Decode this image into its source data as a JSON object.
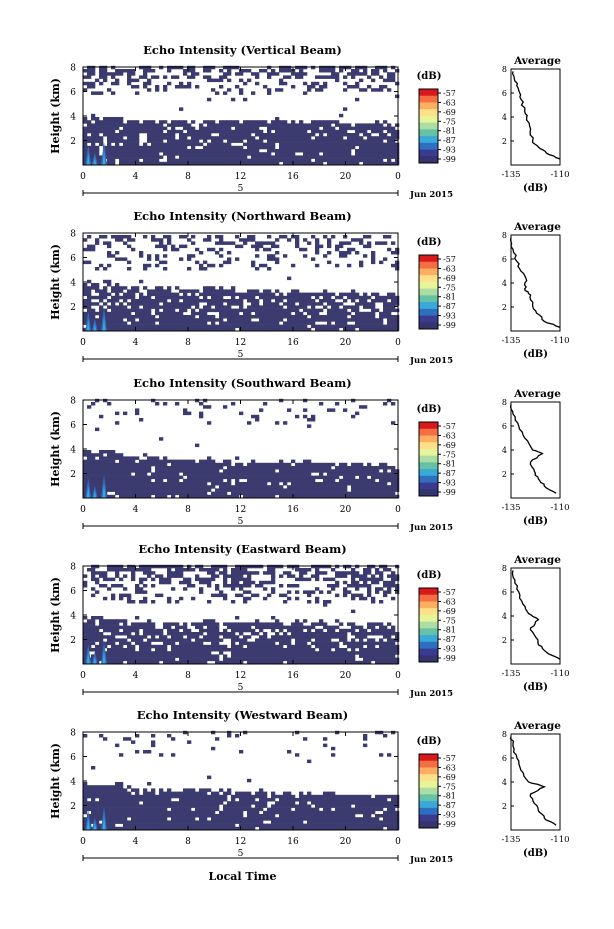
{
  "figure": {
    "xlabel": "Local Time",
    "date_label": "Jun 2015",
    "day_label": "5",
    "colorbar_unit": "(dB)",
    "colorbar_ticks": [
      "-57",
      "-63",
      "-69",
      "-75",
      "-81",
      "-87",
      "-93",
      "-99"
    ],
    "colorbar_colors": [
      "#d7191c",
      "#f46d43",
      "#fdae61",
      "#fee08b",
      "#e6f598",
      "#abdda4",
      "#66c2a5",
      "#3aa8d8",
      "#2f6fc0",
      "#3a3a8f",
      "#36346e"
    ],
    "avg_title": "Average",
    "avg_xlabel": "(dB)",
    "avg_xticks": [
      "-135",
      "-110"
    ],
    "yticks": [
      "2",
      "4",
      "6",
      "8"
    ],
    "xticks": [
      "0",
      "4",
      "8",
      "12",
      "16",
      "20",
      "0"
    ],
    "ylabel": "Height (km)",
    "fill_color": "#3b3b70"
  },
  "chart_data": [
    {
      "type": "heatmap",
      "title": "Echo Intensity (Vertical Beam)",
      "xlabel": "Local Time",
      "ylabel": "Height (km)",
      "xlim": [
        0,
        24
      ],
      "ylim": [
        0,
        8
      ],
      "upper_layer": {
        "bottom": 5.8,
        "top": 8.0,
        "density": 0.45
      },
      "lower_layer": {
        "top_left": 3.6,
        "top_right": 3.5,
        "gap_density": 0.08
      },
      "avg_profile": {
        "x": [
          -110,
          -117,
          -121,
          -124,
          -125,
          -127,
          -128,
          -130,
          -131,
          -133,
          -134
        ],
        "y": [
          0.5,
          1.0,
          1.5,
          2.0,
          3.0,
          4.0,
          4.5,
          5.5,
          6.2,
          7.0,
          7.8
        ]
      }
    },
    {
      "type": "heatmap",
      "title": "Echo Intensity (Northward Beam)",
      "xlabel": "Local Time",
      "ylabel": "Height (km)",
      "xlim": [
        0,
        24
      ],
      "ylim": [
        0,
        8
      ],
      "upper_layer": {
        "bottom": 5.0,
        "top": 7.8,
        "density": 0.3
      },
      "lower_layer": {
        "top_left": 3.7,
        "top_right": 3.0,
        "gap_density": 0.15
      },
      "avg_profile": {
        "x": [
          -110,
          -118,
          -122,
          -124,
          -125,
          -128,
          -127,
          -130,
          -132,
          -134,
          -135
        ],
        "y": [
          0.3,
          0.8,
          1.5,
          2.2,
          3.0,
          3.5,
          4.2,
          5.0,
          5.8,
          6.8,
          7.8
        ]
      }
    },
    {
      "type": "heatmap",
      "title": "Echo Intensity (Southward Beam)",
      "xlabel": "Local Time",
      "ylabel": "Height (km)",
      "xlim": [
        0,
        24
      ],
      "ylim": [
        0,
        8
      ],
      "upper_layer": {
        "bottom": 6.0,
        "top": 8.0,
        "density": 0.12
      },
      "lower_layer": {
        "top_left": 3.5,
        "top_right": 2.6,
        "gap_density": 0.05
      },
      "avg_profile": {
        "x": [
          -112,
          -118,
          -121,
          -123,
          -125,
          -119,
          -124,
          -128,
          -131,
          -134,
          -135
        ],
        "y": [
          0.4,
          1.0,
          1.6,
          2.2,
          3.0,
          3.7,
          4.0,
          5.0,
          6.0,
          7.0,
          7.8
        ]
      }
    },
    {
      "type": "heatmap",
      "title": "Echo Intensity (Eastward Beam)",
      "xlabel": "Local Time",
      "ylabel": "Height (km)",
      "xlim": [
        0,
        24
      ],
      "ylim": [
        0,
        8
      ],
      "upper_layer": {
        "bottom": 5.0,
        "top": 8.0,
        "density": 0.5
      },
      "lower_layer": {
        "top_left": 3.6,
        "top_right": 3.3,
        "gap_density": 0.15
      },
      "avg_profile": {
        "x": [
          -110,
          -117,
          -121,
          -123,
          -125,
          -121,
          -126,
          -129,
          -131,
          -133,
          -134
        ],
        "y": [
          0.4,
          1.0,
          1.6,
          2.4,
          3.0,
          3.7,
          4.2,
          5.0,
          6.0,
          7.0,
          7.8
        ]
      }
    },
    {
      "type": "heatmap",
      "title": "Echo Intensity (Westward Beam)",
      "xlabel": "Local Time",
      "ylabel": "Height (km)",
      "xlim": [
        0,
        24
      ],
      "ylim": [
        0,
        8
      ],
      "upper_layer": {
        "bottom": 6.0,
        "top": 8.0,
        "density": 0.08
      },
      "lower_layer": {
        "top_left": 3.5,
        "top_right": 2.8,
        "gap_density": 0.06
      },
      "avg_profile": {
        "x": [
          -112,
          -118,
          -121,
          -123,
          -125,
          -118,
          -126,
          -130,
          -132,
          -134,
          -135
        ],
        "y": [
          0.4,
          1.0,
          1.6,
          2.2,
          3.0,
          3.6,
          4.0,
          5.0,
          6.0,
          7.0,
          7.8
        ]
      }
    }
  ]
}
